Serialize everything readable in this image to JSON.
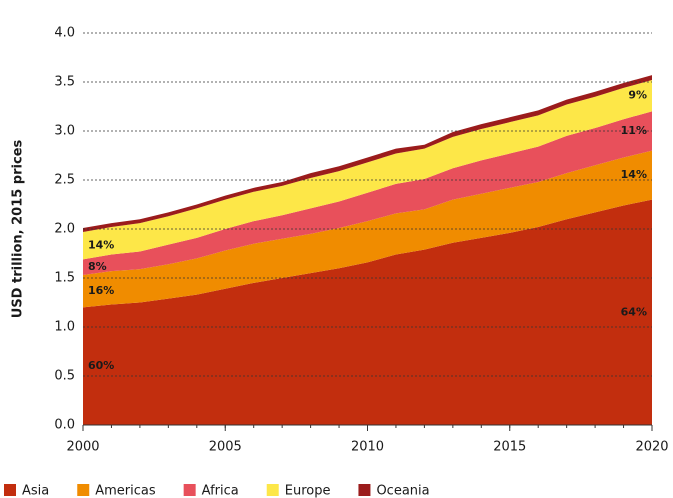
{
  "chart_data": {
    "type": "stacked_area",
    "y_label": "USD trillion, 2015 prices",
    "x": [
      2000,
      2001,
      2002,
      2003,
      2004,
      2005,
      2006,
      2007,
      2008,
      2009,
      2010,
      2011,
      2012,
      2013,
      2014,
      2015,
      2016,
      2017,
      2018,
      2019,
      2020
    ],
    "xlim": [
      2000,
      2020
    ],
    "xticks": [
      2000,
      2005,
      2010,
      2015,
      2020
    ],
    "ylim": [
      0,
      4
    ],
    "yticks": [
      {
        "value": 0,
        "label": "0.0"
      },
      0.5,
      {
        "value": 1,
        "label": "1.0"
      },
      1.5,
      {
        "value": 2,
        "label": "2.0"
      },
      2.5,
      {
        "value": 3,
        "label": "3.0"
      },
      3.5,
      {
        "value": 4,
        "label": "4.0"
      }
    ],
    "grid": true,
    "legend": "bottom",
    "series": [
      {
        "name": "Asia",
        "color": "#c22e0e",
        "label_color": "#ffffff",
        "values": [
          1.2,
          1.23,
          1.25,
          1.29,
          1.33,
          1.39,
          1.45,
          1.5,
          1.55,
          1.6,
          1.66,
          1.74,
          1.79,
          1.86,
          1.91,
          1.96,
          2.02,
          2.1,
          2.17,
          2.24,
          2.3
        ],
        "annotations": [
          {
            "x": 2000,
            "text": "60%"
          },
          {
            "x": 2020,
            "text": "64%"
          }
        ]
      },
      {
        "name": "Americas",
        "color": "#f08c00",
        "label_color": "#ffffff",
        "values": [
          0.33,
          0.34,
          0.34,
          0.35,
          0.37,
          0.39,
          0.4,
          0.4,
          0.4,
          0.41,
          0.42,
          0.42,
          0.41,
          0.44,
          0.45,
          0.46,
          0.46,
          0.47,
          0.48,
          0.49,
          0.5
        ],
        "annotations": [
          {
            "x": 2000,
            "text": "16%"
          },
          {
            "x": 2020,
            "text": "14%"
          }
        ]
      },
      {
        "name": "Africa",
        "color": "#e8505b",
        "label_color": "#ffffff",
        "values": [
          0.16,
          0.17,
          0.18,
          0.2,
          0.21,
          0.22,
          0.23,
          0.24,
          0.26,
          0.27,
          0.29,
          0.3,
          0.31,
          0.32,
          0.34,
          0.35,
          0.36,
          0.38,
          0.38,
          0.39,
          0.4
        ],
        "annotations": [
          {
            "x": 2000,
            "text": "8%"
          },
          {
            "x": 2020,
            "text": "11%"
          }
        ]
      },
      {
        "name": "Europe",
        "color": "#fde748",
        "label_color": "#1a1a1a",
        "values": [
          0.28,
          0.28,
          0.29,
          0.29,
          0.3,
          0.3,
          0.3,
          0.3,
          0.31,
          0.31,
          0.31,
          0.31,
          0.31,
          0.32,
          0.32,
          0.32,
          0.32,
          0.32,
          0.32,
          0.32,
          0.32
        ],
        "annotations": [
          {
            "x": 2000,
            "text": "14%"
          },
          {
            "x": 2020,
            "text": "9%"
          }
        ]
      },
      {
        "name": "Oceania",
        "color": "#9b1c1c",
        "values": [
          0.04,
          0.04,
          0.04,
          0.04,
          0.04,
          0.04,
          0.04,
          0.04,
          0.05,
          0.05,
          0.05,
          0.05,
          0.04,
          0.05,
          0.05,
          0.05,
          0.05,
          0.05,
          0.05,
          0.05,
          0.05
        ]
      }
    ]
  }
}
